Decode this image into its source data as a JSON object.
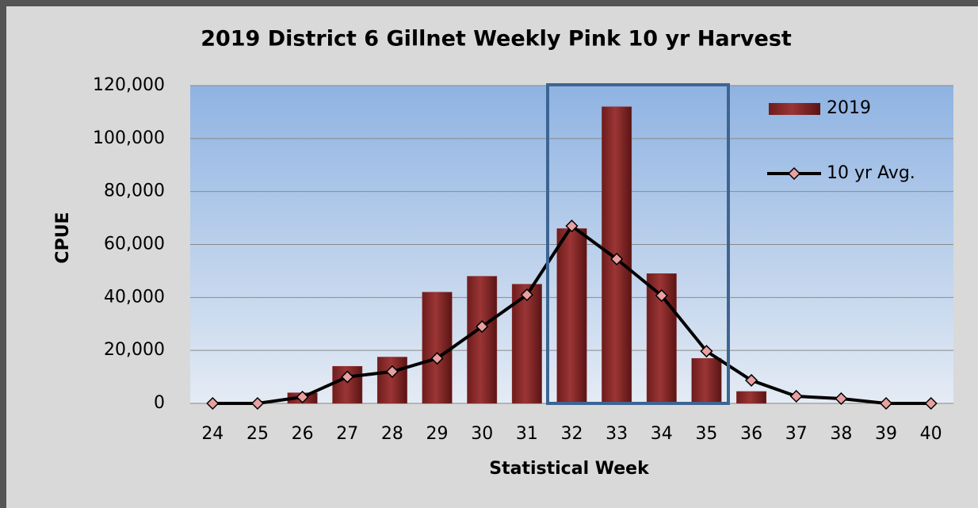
{
  "chart_data": {
    "type": "bar_line",
    "title": "2019 District 6 Gillnet Weekly Pink 10 yr Harvest",
    "x_label": "Statistical Week",
    "y_label": "CPUE",
    "categories": [
      "24",
      "25",
      "26",
      "27",
      "28",
      "29",
      "30",
      "31",
      "32",
      "33",
      "34",
      "35",
      "36",
      "37",
      "38",
      "39",
      "40"
    ],
    "series": [
      {
        "name": "2019",
        "type": "bar",
        "color": "#8b2a2a",
        "values": [
          0,
          0,
          4000,
          14000,
          17500,
          42000,
          48000,
          45000,
          66000,
          112000,
          49000,
          17000,
          4500,
          0,
          0,
          0,
          0
        ]
      },
      {
        "name": "10 yr Avg.",
        "type": "line",
        "color": "#000000",
        "marker_color": "#e8a0a0",
        "values": [
          0,
          0,
          2400,
          10000,
          12000,
          17000,
          29000,
          41000,
          67000,
          54500,
          40700,
          19700,
          8700,
          2700,
          1800,
          0,
          0
        ]
      }
    ],
    "ylim": [
      0,
      120000
    ],
    "yticks": [
      0,
      {
        "value": 20000,
        "label": "20,000"
      },
      {
        "value": 40000,
        "label": "40,000"
      },
      {
        "value": 60000,
        "label": "60,000"
      },
      {
        "value": 80000,
        "label": "80,000"
      },
      {
        "value": 100000,
        "label": "100,000"
      },
      {
        "value": 120000,
        "label": "120,000"
      }
    ],
    "grid": true
  }
}
